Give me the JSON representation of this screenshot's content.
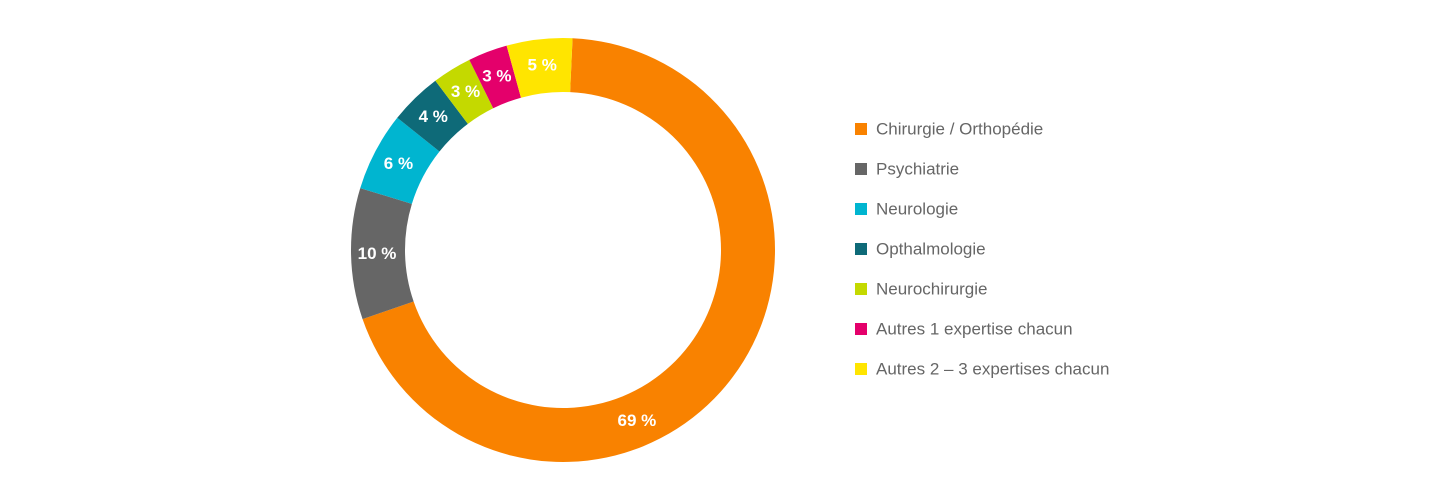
{
  "chart_data": {
    "type": "donut",
    "categories": [
      "Chirurgie / Orthopédie",
      "Psychiatrie",
      "Neurologie",
      "Opthalmologie",
      "Neurochirurgie",
      "Autres 1 expertise chacun",
      "Autres 2 – 3 expertises chacun"
    ],
    "values": [
      69,
      10,
      6,
      4,
      3,
      3,
      5
    ],
    "value_labels": [
      "69 %",
      "10 %",
      "6 %",
      "4 %",
      "3 %",
      "3 %",
      "5 %"
    ],
    "colors": [
      "#f98200",
      "#666666",
      "#00b5d0",
      "#0e6a78",
      "#c4d900",
      "#e4006b",
      "#ffe500"
    ],
    "legend": "right"
  }
}
